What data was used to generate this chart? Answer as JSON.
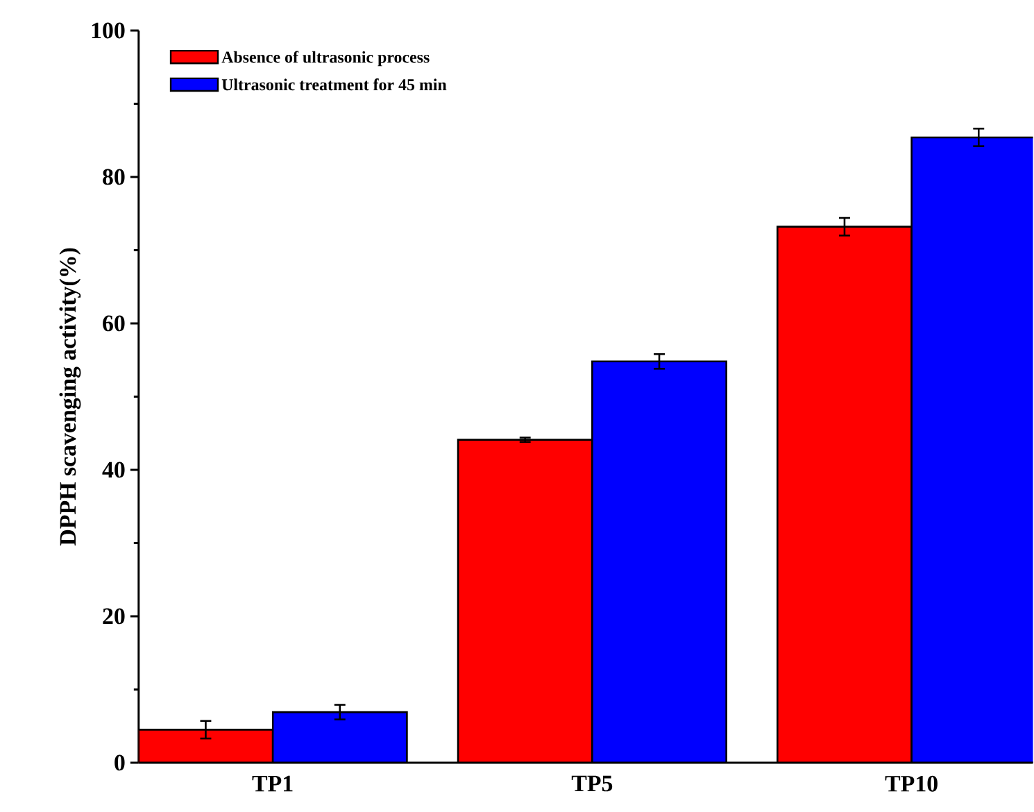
{
  "chart_data": {
    "type": "bar",
    "ylabel": "DPPH scavenging activity(%)",
    "categories": [
      "TP1",
      "TP5",
      "TP10"
    ],
    "series": [
      {
        "name": "Absence of ultrasonic process",
        "color": "#ff0000",
        "values": [
          4.5,
          44.1,
          73.2
        ],
        "errors": [
          1.2,
          0.3,
          1.2
        ]
      },
      {
        "name": "Ultrasonic treatment for 45 min",
        "color": "#0000ff",
        "values": [
          6.9,
          54.8,
          85.4
        ],
        "errors": [
          1.0,
          1.0,
          1.2
        ]
      }
    ],
    "ylim": [
      0,
      100
    ],
    "yticks": [
      0,
      20,
      40,
      60,
      80,
      100
    ],
    "grid": false,
    "legend": "top left"
  }
}
